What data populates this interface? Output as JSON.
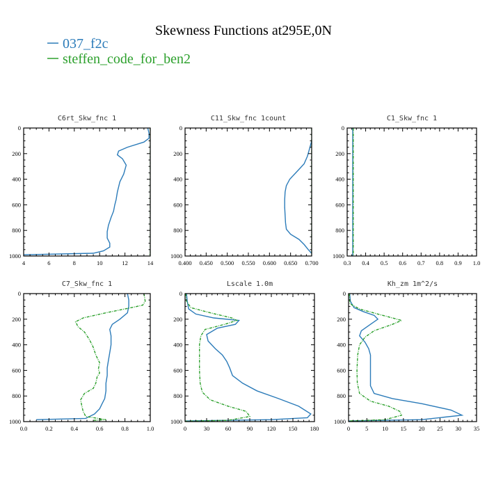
{
  "figure": {
    "title": "Skewness Functions at295E,0N",
    "legend": [
      {
        "label": "037_f2c",
        "color": "#2b7bb9"
      },
      {
        "label": "steffen_code_for_ben2",
        "color": "#2ca02c"
      }
    ]
  },
  "chart_data": [
    {
      "type": "line",
      "title": "C6rt_Skw_fnc",
      "units": "1",
      "xlim": [
        4,
        14
      ],
      "ylim": [
        1000,
        0
      ],
      "xticks": [
        "4",
        "6",
        "8",
        "10",
        "12",
        "14"
      ],
      "yticks": [
        "0",
        "200",
        "400",
        "600",
        "800",
        "1000"
      ],
      "series": [
        {
          "name": "037_f2c",
          "color": "#2b7bb9",
          "points": [
            [
              13.8,
              0
            ],
            [
              13.9,
              40
            ],
            [
              13.9,
              80
            ],
            [
              13.5,
              110
            ],
            [
              12.2,
              150
            ],
            [
              11.5,
              180
            ],
            [
              11.4,
              210
            ],
            [
              11.8,
              240
            ],
            [
              12.1,
              290
            ],
            [
              11.9,
              360
            ],
            [
              11.6,
              420
            ],
            [
              11.4,
              500
            ],
            [
              11.3,
              560
            ],
            [
              11.2,
              600
            ],
            [
              11.1,
              650
            ],
            [
              10.9,
              700
            ],
            [
              10.7,
              760
            ],
            [
              10.6,
              810
            ],
            [
              10.6,
              860
            ],
            [
              10.8,
              900
            ],
            [
              10.8,
              930
            ],
            [
              10.3,
              960
            ],
            [
              9.5,
              978
            ],
            [
              4.0,
              990
            ]
          ]
        },
        {
          "name": "steffen_code_for_ben2",
          "color": "#2ca02c",
          "points": [
            [
              14.0,
              0
            ],
            [
              14.0,
              500
            ],
            [
              14.0,
              980
            ],
            [
              13.9,
              1000
            ]
          ]
        }
      ]
    },
    {
      "type": "line",
      "title": "C11_Skw_fnc",
      "units": "1count",
      "xlim": [
        0.4,
        0.7
      ],
      "ylim": [
        1000,
        0
      ],
      "xticks": [
        "0.400",
        "0.450",
        "0.500",
        "0.550",
        "0.600",
        "0.650",
        "0.700"
      ],
      "yticks": [
        "0",
        "200",
        "400",
        "600",
        "800",
        "1000"
      ],
      "series": [
        {
          "name": "037_f2c",
          "color": "#2b7bb9",
          "points": [
            [
              0.7,
              100
            ],
            [
              0.695,
              160
            ],
            [
              0.69,
              220
            ],
            [
              0.682,
              280
            ],
            [
              0.665,
              340
            ],
            [
              0.648,
              400
            ],
            [
              0.64,
              450
            ],
            [
              0.637,
              500
            ],
            [
              0.636,
              560
            ],
            [
              0.636,
              620
            ],
            [
              0.637,
              680
            ],
            [
              0.638,
              740
            ],
            [
              0.64,
              790
            ],
            [
              0.65,
              830
            ],
            [
              0.67,
              870
            ],
            [
              0.682,
              910
            ],
            [
              0.692,
              950
            ],
            [
              0.7,
              980
            ]
          ]
        },
        {
          "name": "steffen_code_for_ben2",
          "color": "#2ca02c",
          "points": [
            [
              0.7,
              0
            ],
            [
              0.7,
              1000
            ]
          ]
        }
      ]
    },
    {
      "type": "line",
      "title": "C1_Skw_fnc",
      "units": "1",
      "xlim": [
        0.3,
        1.0
      ],
      "ylim": [
        1000,
        0
      ],
      "xticks": [
        "0.3",
        "0.4",
        "0.5",
        "0.6",
        "0.7",
        "0.8",
        "0.9",
        "1.0"
      ],
      "yticks": [
        "0",
        "200",
        "400",
        "600",
        "800",
        "1000"
      ],
      "series": [
        {
          "name": "037_f2c",
          "color": "#2b7bb9",
          "points": [
            [
              0.33,
              0
            ],
            [
              0.33,
              1000
            ]
          ]
        },
        {
          "name": "steffen_code_for_ben2",
          "color": "#2ca02c",
          "points": [
            [
              0.333,
              0
            ],
            [
              0.333,
              1000
            ]
          ]
        }
      ]
    },
    {
      "type": "line",
      "title": "C7_Skw_fnc",
      "units": "1",
      "xlim": [
        0.0,
        1.0
      ],
      "ylim": [
        1000,
        0
      ],
      "xticks": [
        "0.0",
        "0.2",
        "0.4",
        "0.6",
        "0.8",
        "1.0"
      ],
      "yticks": [
        "0",
        "200",
        "400",
        "600",
        "800",
        "1000"
      ],
      "series": [
        {
          "name": "037_f2c",
          "color": "#2b7bb9",
          "points": [
            [
              0.82,
              0
            ],
            [
              0.83,
              50
            ],
            [
              0.83,
              100
            ],
            [
              0.82,
              150
            ],
            [
              0.76,
              200
            ],
            [
              0.7,
              240
            ],
            [
              0.68,
              280
            ],
            [
              0.69,
              330
            ],
            [
              0.69,
              400
            ],
            [
              0.68,
              460
            ],
            [
              0.67,
              520
            ],
            [
              0.66,
              580
            ],
            [
              0.66,
              640
            ],
            [
              0.65,
              700
            ],
            [
              0.65,
              760
            ],
            [
              0.64,
              820
            ],
            [
              0.62,
              860
            ],
            [
              0.6,
              900
            ],
            [
              0.56,
              940
            ],
            [
              0.49,
              975
            ],
            [
              0.1,
              985
            ]
          ]
        },
        {
          "name": "steffen_code_for_ben2",
          "color": "#2ca02c",
          "points": [
            [
              0.95,
              0
            ],
            [
              0.96,
              60
            ],
            [
              0.94,
              90
            ],
            [
              0.85,
              110
            ],
            [
              0.65,
              150
            ],
            [
              0.47,
              190
            ],
            [
              0.41,
              220
            ],
            [
              0.43,
              260
            ],
            [
              0.48,
              300
            ],
            [
              0.52,
              360
            ],
            [
              0.55,
              420
            ],
            [
              0.57,
              480
            ],
            [
              0.6,
              540
            ],
            [
              0.59,
              590
            ],
            [
              0.6,
              620
            ],
            [
              0.58,
              650
            ],
            [
              0.57,
              700
            ],
            [
              0.55,
              740
            ],
            [
              0.48,
              780
            ],
            [
              0.45,
              830
            ],
            [
              0.46,
              880
            ],
            [
              0.47,
              920
            ],
            [
              0.49,
              960
            ],
            [
              0.65,
              985
            ],
            [
              0.55,
              990
            ]
          ]
        }
      ]
    },
    {
      "type": "line",
      "title": "Lscale",
      "units": "1.0m",
      "xlim": [
        0,
        180
      ],
      "ylim": [
        1000,
        0
      ],
      "xticks": [
        "0",
        "30",
        "60",
        "90",
        "120",
        "150",
        "180"
      ],
      "yticks": [
        "0",
        "200",
        "400",
        "600",
        "800",
        "1000"
      ],
      "series": [
        {
          "name": "037_f2c",
          "color": "#2b7bb9",
          "points": [
            [
              2,
              0
            ],
            [
              3,
              60
            ],
            [
              5,
              120
            ],
            [
              15,
              160
            ],
            [
              40,
              190
            ],
            [
              75,
              210
            ],
            [
              70,
              240
            ],
            [
              45,
              270
            ],
            [
              30,
              320
            ],
            [
              32,
              370
            ],
            [
              42,
              430
            ],
            [
              52,
              480
            ],
            [
              58,
              530
            ],
            [
              62,
              580
            ],
            [
              66,
              640
            ],
            [
              80,
              700
            ],
            [
              100,
              760
            ],
            [
              130,
              820
            ],
            [
              158,
              880
            ],
            [
              175,
              940
            ],
            [
              170,
              970
            ],
            [
              120,
              985
            ],
            [
              0,
              995
            ]
          ]
        },
        {
          "name": "steffen_code_for_ben2",
          "color": "#2ca02c",
          "points": [
            [
              1,
              0
            ],
            [
              2,
              60
            ],
            [
              8,
              110
            ],
            [
              35,
              150
            ],
            [
              65,
              190
            ],
            [
              72,
              210
            ],
            [
              55,
              240
            ],
            [
              28,
              280
            ],
            [
              22,
              330
            ],
            [
              20,
              400
            ],
            [
              20,
              500
            ],
            [
              20,
              600
            ],
            [
              21,
              700
            ],
            [
              24,
              770
            ],
            [
              35,
              830
            ],
            [
              60,
              880
            ],
            [
              85,
              920
            ],
            [
              90,
              960
            ],
            [
              60,
              990
            ],
            [
              0,
              997
            ]
          ]
        }
      ]
    },
    {
      "type": "line",
      "title": "Kh_zm",
      "units": "1m^2/s",
      "xlim": [
        0,
        35
      ],
      "ylim": [
        1000,
        0
      ],
      "xticks": [
        "0",
        "5",
        "10",
        "15",
        "20",
        "25",
        "30",
        "35"
      ],
      "yticks": [
        "0",
        "200",
        "400",
        "600",
        "800",
        "1000"
      ],
      "series": [
        {
          "name": "037_f2c",
          "color": "#2b7bb9",
          "points": [
            [
              0.3,
              0
            ],
            [
              0.5,
              60
            ],
            [
              1.5,
              110
            ],
            [
              4,
              140
            ],
            [
              7,
              170
            ],
            [
              8,
              200
            ],
            [
              6,
              240
            ],
            [
              3.5,
              290
            ],
            [
              3,
              330
            ],
            [
              4.5,
              380
            ],
            [
              5.5,
              430
            ],
            [
              6,
              480
            ],
            [
              6,
              560
            ],
            [
              6,
              650
            ],
            [
              6,
              720
            ],
            [
              7,
              780
            ],
            [
              12,
              820
            ],
            [
              20,
              860
            ],
            [
              28,
              910
            ],
            [
              31,
              950
            ],
            [
              20,
              985
            ],
            [
              0,
              995
            ]
          ]
        },
        {
          "name": "steffen_code_for_ben2",
          "color": "#2ca02c",
          "points": [
            [
              0.2,
              0
            ],
            [
              0.4,
              80
            ],
            [
              3,
              120
            ],
            [
              8,
              160
            ],
            [
              12,
              190
            ],
            [
              14.5,
              210
            ],
            [
              12,
              240
            ],
            [
              7,
              290
            ],
            [
              4.5,
              340
            ],
            [
              3,
              400
            ],
            [
              2.5,
              480
            ],
            [
              2.3,
              600
            ],
            [
              2.4,
              700
            ],
            [
              3,
              780
            ],
            [
              6,
              840
            ],
            [
              11,
              880
            ],
            [
              14,
              920
            ],
            [
              14.5,
              950
            ],
            [
              10,
              985
            ],
            [
              0,
              995
            ]
          ]
        }
      ]
    }
  ]
}
